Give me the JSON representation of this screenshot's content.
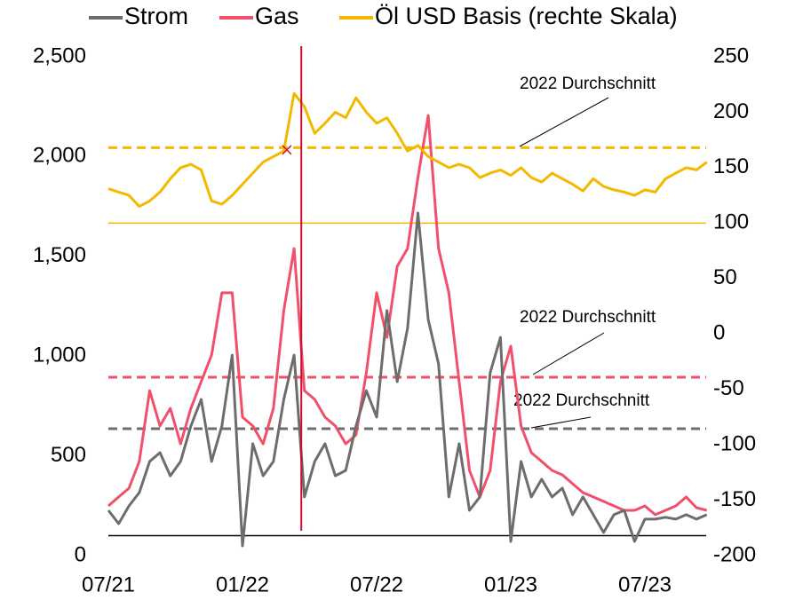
{
  "chart_data": {
    "type": "line",
    "categories": [
      "07/21",
      null,
      null,
      null,
      null,
      null,
      null,
      null,
      null,
      null,
      null,
      null,
      null,
      "01/22",
      null,
      null,
      null,
      null,
      null,
      null,
      null,
      null,
      null,
      null,
      null,
      null,
      "07/22",
      null,
      null,
      null,
      null,
      null,
      null,
      null,
      null,
      null,
      null,
      null,
      null,
      "01/23",
      null,
      null,
      null,
      null,
      null,
      null,
      null,
      null,
      null,
      null,
      null,
      null,
      "07/23",
      null,
      null,
      null,
      null,
      null,
      null
    ],
    "series": [
      {
        "name": "Gas",
        "color": "#f2506a",
        "values": [
          249,
          294,
          338,
          472,
          827,
          650,
          738,
          560,
          738,
          872,
          1005,
          1317,
          1317,
          694,
          650,
          560,
          738,
          1228,
          1539,
          827,
          783,
          694,
          650,
          560,
          605,
          916,
          1317,
          1094,
          1450,
          1539,
          1895,
          2206,
          1539,
          1317,
          872,
          427,
          294,
          427,
          872,
          1050,
          650,
          516,
          472,
          427,
          405,
          360,
          316,
          294,
          272,
          249,
          227,
          227,
          249,
          205,
          227,
          249,
          294,
          240,
          227
        ]
      },
      {
        "name": "Strom",
        "color": "#6d6d6d",
        "values": [
          227,
          160,
          249,
          316,
          472,
          516,
          400,
          472,
          650,
          783,
          472,
          650,
          1005,
          49,
          561,
          400,
          472,
          783,
          1005,
          294,
          472,
          561,
          400,
          427,
          650,
          827,
          694,
          1228,
          872,
          1139,
          1717,
          1183,
          961,
          294,
          561,
          227,
          294,
          916,
          1094,
          71,
          472,
          294,
          383,
          294,
          338,
          205,
          294,
          205,
          116,
          205,
          227,
          71,
          183,
          183,
          192,
          183,
          205,
          183,
          205
        ]
      },
      {
        "name": "Öl USD Basis (rechte Skala)",
        "color": "#f5b800",
        "axis": "y2",
        "values": [
          131,
          128,
          125,
          115,
          120,
          128,
          140,
          150,
          153,
          148,
          120,
          117,
          125,
          135,
          145,
          155,
          160,
          165,
          217,
          205,
          181,
          190,
          200,
          195,
          213,
          200,
          190,
          195,
          181,
          165,
          170,
          160,
          155,
          150,
          153,
          150,
          141,
          145,
          148,
          143,
          150,
          141,
          137,
          145,
          140,
          135,
          129,
          140,
          133,
          130,
          128,
          125,
          130,
          128,
          140,
          145,
          150,
          148,
          155
        ]
      }
    ],
    "legend_order": [
      1,
      0,
      2
    ],
    "ylim": [
      0,
      2500
    ],
    "yticks": [
      0,
      500,
      {
        "value": 1000,
        "label": "1,000"
      },
      {
        "value": 1500,
        "label": "1,500"
      },
      {
        "value": 2000,
        "label": "2,000"
      },
      {
        "value": 2500,
        "label": "2,500"
      }
    ],
    "y2lim": [
      -200,
      250
    ],
    "y2ticks": [
      -200,
      -150,
      -100,
      -50,
      0,
      50,
      100,
      150,
      200,
      250
    ],
    "reference_lines": [
      {
        "value": 168,
        "axis": "y2",
        "color": "#f5b800",
        "dashed": true
      },
      {
        "value": 100,
        "axis": "y2",
        "color": "#f5b800",
        "dashed": false
      },
      {
        "value": 894,
        "color": "#f2506a",
        "dashed": true
      },
      {
        "value": 636,
        "color": "#6d6d6d",
        "dashed": true
      },
      {
        "value": 100,
        "color": "#000000",
        "dashed": false
      }
    ],
    "vline": {
      "x": 18.7,
      "color": "#c8102e"
    },
    "cross": {
      "x": 17.3,
      "y": 166,
      "axis": "y2",
      "color": "#c8102e"
    },
    "annotations": [
      "2022 Durchschnitt",
      "2022 Durchschnitt",
      "2022 Durchschnitt"
    ]
  }
}
